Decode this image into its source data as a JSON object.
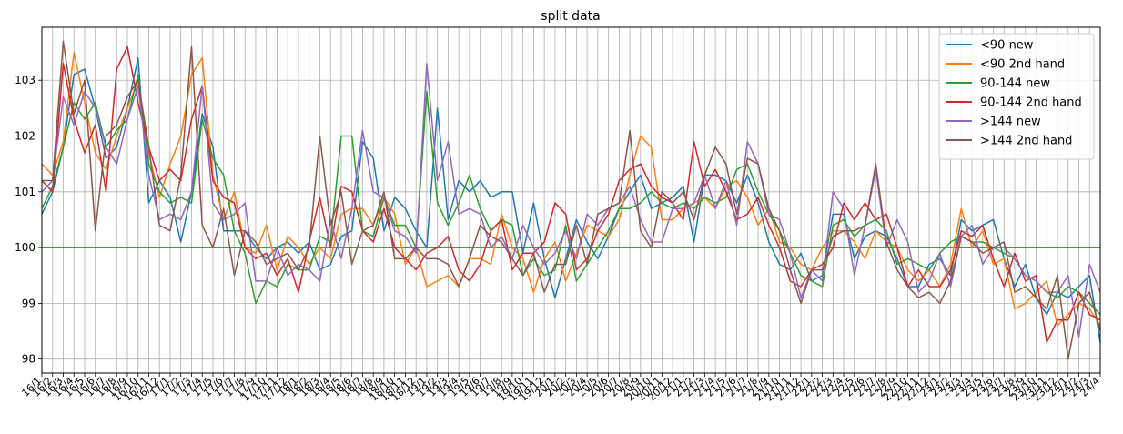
{
  "chart_data": {
    "type": "line",
    "title": "split data",
    "xlabel": "",
    "ylabel": "",
    "ylim": [
      97.75,
      103.95
    ],
    "y_ticks": [
      98,
      99,
      100,
      101,
      102,
      103
    ],
    "reference_line": {
      "value": 100,
      "color": "#008000"
    },
    "grid": true,
    "legend_position": "top-right",
    "x": [
      "16/1",
      "16/2",
      "16/3",
      "16/4",
      "16/5",
      "16/6",
      "16/7",
      "16/8",
      "16/9",
      "16/10",
      "16/11",
      "16/12",
      "17/1",
      "17/2",
      "17/3",
      "17/4",
      "17/5",
      "17/6",
      "17/7",
      "17/8",
      "17/9",
      "17/10",
      "17/11",
      "17/12",
      "18/1",
      "18/2",
      "18/3",
      "18/4",
      "18/5",
      "18/6",
      "18/7",
      "18/8",
      "18/9",
      "18/10",
      "18/11",
      "18/12",
      "19/1",
      "19/2",
      "19/3",
      "19/4",
      "19/5",
      "19/6",
      "19/7",
      "19/8",
      "19/9",
      "19/10",
      "19/11",
      "19/12",
      "20/1",
      "20/2",
      "20/3",
      "20/4",
      "20/5",
      "20/6",
      "20/7",
      "20/8",
      "20/9",
      "20/10",
      "20/11",
      "20/12",
      "21/1",
      "21/2",
      "21/3",
      "21/4",
      "21/5",
      "21/6",
      "21/7",
      "21/8",
      "21/9",
      "21/10",
      "21/11",
      "21/12",
      "22/1",
      "22/2",
      "22/3",
      "22/4",
      "22/5",
      "22/6",
      "22/7",
      "22/8",
      "22/9",
      "22/10",
      "22/11",
      "22/12",
      "23/1",
      "23/2",
      "23/3",
      "23/4",
      "23/5",
      "23/6",
      "23/7",
      "23/8",
      "23/9",
      "23/10",
      "23/11",
      "23/12",
      "24/1",
      "24/2",
      "24/3",
      "24/4"
    ],
    "series": [
      {
        "name": "<90 new",
        "color": "#1f77b4",
        "values": [
          100.6,
          101.0,
          101.8,
          103.1,
          103.2,
          102.5,
          101.6,
          101.8,
          102.5,
          103.4,
          100.8,
          101.2,
          100.9,
          100.1,
          101.0,
          102.4,
          101.8,
          100.3,
          100.3,
          100.3,
          100.0,
          99.8,
          100.0,
          100.1,
          99.9,
          100.1,
          99.6,
          99.7,
          100.2,
          100.3,
          101.9,
          101.6,
          100.3,
          100.9,
          100.7,
          100.3,
          100.0,
          102.5,
          100.5,
          101.2,
          101.0,
          101.2,
          100.9,
          101.0,
          101.0,
          99.9,
          100.8,
          99.8,
          99.1,
          99.8,
          100.5,
          100.1,
          99.8,
          100.2,
          100.7,
          101.0,
          101.3,
          100.7,
          100.8,
          100.9,
          101.1,
          100.1,
          101.3,
          101.3,
          101.2,
          100.8,
          101.3,
          100.8,
          100.1,
          99.7,
          99.6,
          99.9,
          99.4,
          99.5,
          100.6,
          100.6,
          99.8,
          100.2,
          100.3,
          100.2,
          99.8,
          99.3,
          99.3,
          99.7,
          99.8,
          99.5,
          100.5,
          100.3,
          100.4,
          100.5,
          99.8,
          99.3,
          99.7,
          99.1,
          98.8,
          99.2,
          99.1,
          99.3,
          99.5,
          98.3
        ]
      },
      {
        "name": "<90 2nd hand",
        "color": "#ff7f0e",
        "values": [
          101.5,
          101.3,
          101.9,
          103.5,
          102.6,
          101.7,
          101.4,
          102.0,
          102.5,
          103.0,
          101.7,
          100.9,
          101.5,
          102.0,
          103.1,
          103.4,
          101.3,
          100.5,
          101.0,
          100.0,
          99.9,
          100.4,
          99.6,
          100.2,
          100.0,
          99.7,
          100.0,
          99.8,
          100.6,
          100.7,
          100.7,
          100.4,
          100.9,
          100.6,
          99.7,
          100.0,
          99.3,
          99.4,
          99.5,
          99.3,
          99.8,
          99.8,
          99.7,
          100.6,
          100.0,
          99.8,
          99.2,
          99.8,
          100.1,
          99.4,
          99.9,
          100.4,
          100.3,
          100.2,
          100.5,
          101.3,
          102.0,
          101.8,
          100.5,
          100.5,
          100.7,
          100.8,
          100.9,
          100.7,
          101.1,
          101.2,
          100.9,
          100.4,
          100.7,
          100.1,
          100.0,
          99.7,
          99.6,
          100.0,
          100.3,
          100.3,
          100.1,
          99.8,
          100.3,
          100.1,
          100.0,
          99.6,
          99.4,
          99.6,
          99.3,
          99.7,
          100.7,
          100.0,
          100.3,
          99.7,
          99.8,
          98.9,
          99.0,
          99.2,
          99.4,
          98.6,
          98.8,
          99.0,
          98.9,
          98.6
        ]
      },
      {
        "name": "90-144 new",
        "color": "#2ca02c",
        "values": [
          100.7,
          101.1,
          101.8,
          102.6,
          102.3,
          102.6,
          101.8,
          102.1,
          102.3,
          103.1,
          101.5,
          101.0,
          100.8,
          100.9,
          100.8,
          102.3,
          101.6,
          101.3,
          100.3,
          99.9,
          99.0,
          99.4,
          99.3,
          99.7,
          99.6,
          99.6,
          100.2,
          100.1,
          102.0,
          102.0,
          100.3,
          100.2,
          100.9,
          100.4,
          100.4,
          100.0,
          102.8,
          100.8,
          100.4,
          100.8,
          101.3,
          100.7,
          100.3,
          100.5,
          100.4,
          99.5,
          99.8,
          99.5,
          99.6,
          100.4,
          99.4,
          99.7,
          100.0,
          100.3,
          100.7,
          100.7,
          100.8,
          101.0,
          100.8,
          100.7,
          100.8,
          100.7,
          100.9,
          100.8,
          100.9,
          101.4,
          101.5,
          101.0,
          100.6,
          100.3,
          99.9,
          99.5,
          99.4,
          99.3,
          100.4,
          100.5,
          100.2,
          100.4,
          100.5,
          100.3,
          99.7,
          99.8,
          99.7,
          99.6,
          99.9,
          100.1,
          100.2,
          100.1,
          100.1,
          100.0,
          99.9,
          99.8,
          99.5,
          99.4,
          99.2,
          99.1,
          99.3,
          99.2,
          99.0,
          98.8
        ]
      },
      {
        "name": "90-144 2nd hand",
        "color": "#d62728",
        "values": [
          101.2,
          101.0,
          103.3,
          102.3,
          101.7,
          102.2,
          101.0,
          103.2,
          103.6,
          102.6,
          101.8,
          101.2,
          101.4,
          101.2,
          102.3,
          102.9,
          101.2,
          100.9,
          100.8,
          100.0,
          99.8,
          99.9,
          99.5,
          99.8,
          99.2,
          100.1,
          100.9,
          100.0,
          101.1,
          101.0,
          100.3,
          100.1,
          100.7,
          100.0,
          99.8,
          99.6,
          99.9,
          100.0,
          100.2,
          99.6,
          99.4,
          99.7,
          100.3,
          100.5,
          99.6,
          99.9,
          99.9,
          100.1,
          100.8,
          100.6,
          99.6,
          99.8,
          100.3,
          100.6,
          101.2,
          101.4,
          101.5,
          101.1,
          100.9,
          100.8,
          100.5,
          101.9,
          101.1,
          101.4,
          101.0,
          100.5,
          100.6,
          100.9,
          100.4,
          100.0,
          99.4,
          99.3,
          99.6,
          99.7,
          100.0,
          100.8,
          100.5,
          100.8,
          100.5,
          100.6,
          100.0,
          99.3,
          99.6,
          99.3,
          99.3,
          99.6,
          100.3,
          100.2,
          100.4,
          99.8,
          99.3,
          99.9,
          99.4,
          99.5,
          98.3,
          98.7,
          98.7,
          99.2,
          98.8,
          98.7
        ]
      },
      {
        "name": ">144 new",
        "color": "#9467bd",
        "values": [
          101.0,
          101.2,
          102.7,
          102.2,
          102.8,
          102.5,
          101.8,
          101.5,
          102.3,
          102.9,
          101.3,
          100.5,
          100.6,
          100.5,
          101.0,
          102.9,
          100.8,
          100.5,
          100.6,
          100.8,
          99.4,
          99.4,
          100.0,
          99.5,
          99.7,
          99.6,
          99.4,
          100.5,
          99.8,
          100.7,
          102.1,
          101.0,
          100.9,
          100.3,
          100.2,
          99.9,
          103.3,
          101.2,
          101.9,
          100.6,
          100.7,
          100.6,
          100.0,
          100.2,
          99.8,
          100.4,
          100.0,
          99.7,
          99.9,
          100.3,
          99.8,
          100.6,
          100.4,
          100.7,
          100.8,
          101.1,
          100.5,
          100.1,
          100.1,
          100.7,
          100.7,
          100.8,
          101.3,
          100.7,
          101.2,
          100.4,
          101.9,
          101.5,
          100.6,
          100.5,
          99.9,
          99.1,
          99.6,
          99.4,
          101.0,
          100.7,
          99.5,
          100.4,
          101.4,
          100.0,
          100.5,
          100.1,
          99.2,
          99.4,
          99.9,
          99.3,
          100.2,
          100.4,
          99.7,
          100.0,
          100.0,
          99.8,
          99.5,
          99.4,
          99.2,
          99.2,
          99.5,
          98.4,
          99.7,
          99.2
        ]
      },
      {
        "name": ">144 2nd hand",
        "color": "#8c564b",
        "values": [
          101.2,
          101.2,
          103.7,
          102.4,
          103.0,
          100.3,
          102.0,
          102.2,
          102.7,
          103.0,
          101.8,
          100.4,
          100.3,
          101.3,
          103.6,
          100.4,
          100.0,
          100.7,
          99.5,
          100.3,
          100.1,
          99.7,
          99.8,
          99.9,
          99.6,
          100.0,
          102.0,
          100.4,
          101.0,
          99.7,
          100.3,
          100.4,
          101.0,
          99.8,
          99.8,
          100.0,
          99.8,
          99.8,
          99.7,
          99.3,
          99.8,
          100.4,
          100.2,
          100.1,
          99.8,
          99.5,
          99.9,
          99.2,
          99.7,
          99.7,
          100.4,
          99.7,
          100.6,
          100.7,
          100.8,
          102.1,
          100.3,
          100.0,
          101.0,
          100.8,
          101.0,
          100.5,
          101.3,
          101.8,
          101.5,
          100.6,
          101.6,
          101.5,
          100.7,
          100.3,
          99.6,
          99.0,
          99.6,
          99.6,
          100.2,
          100.3,
          100.3,
          100.4,
          101.5,
          100.1,
          99.6,
          99.3,
          99.1,
          99.2,
          99.0,
          99.4,
          100.2,
          100.1,
          99.9,
          100.0,
          100.1,
          99.2,
          99.3,
          99.1,
          98.9,
          99.5,
          98.0,
          99.0,
          99.2,
          98.5
        ]
      }
    ]
  }
}
